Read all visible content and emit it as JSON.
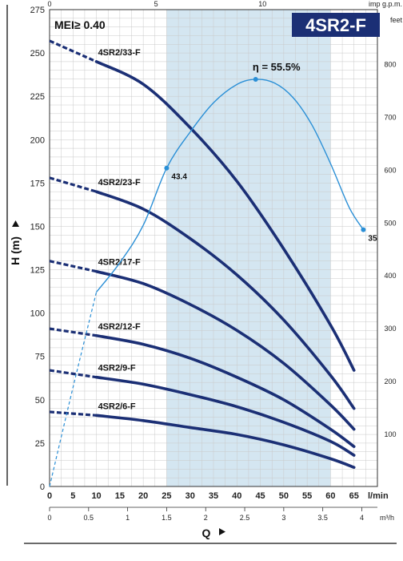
{
  "chart_data": {
    "type": "line",
    "badge": "4SR2-F",
    "mei_label": "MEI≥ 0.40",
    "ylabel": "H (m)",
    "xlabel": "Q",
    "x_unit": "l/min",
    "x_unit_m3h": "m³/h",
    "top_unit": "imp g.p.m.",
    "right_unit": "feet",
    "x_range_lmin": [
      0,
      70
    ],
    "y_range_m": [
      0,
      275
    ],
    "x_ticks_lmin": [
      "0",
      "5",
      "10",
      "15",
      "20",
      "25",
      "30",
      "35",
      "40",
      "45",
      "50",
      "55",
      "60",
      "65"
    ],
    "x_ticks_m3h": [
      "0",
      "0.5",
      "1",
      "1.5",
      "2",
      "2.5",
      "3",
      "3.5",
      "4"
    ],
    "top_ticks": [
      "0",
      "5",
      "10"
    ],
    "y_ticks": [
      "0",
      "25",
      "50",
      "75",
      "100",
      "125",
      "150",
      "175",
      "200",
      "225",
      "250",
      "275"
    ],
    "right_ticks": [
      "100",
      "200",
      "300",
      "400",
      "500",
      "600",
      "700",
      "800"
    ],
    "recommended_range_lmin": [
      25,
      60
    ],
    "series": [
      {
        "name": "4SR2/33-F",
        "dashed_x": [
          0,
          10
        ],
        "dashed_y": [
          257,
          245
        ],
        "x": [
          10,
          20,
          30,
          40,
          50,
          60,
          65
        ],
        "y": [
          245,
          232,
          207,
          176,
          137,
          93,
          67
        ]
      },
      {
        "name": "4SR2/23-F",
        "dashed_x": [
          0,
          10
        ],
        "dashed_y": [
          178,
          170
        ],
        "x": [
          10,
          20,
          30,
          40,
          50,
          60,
          65
        ],
        "y": [
          170,
          160,
          143,
          122,
          96,
          64,
          45
        ]
      },
      {
        "name": "4SR2/17-F",
        "dashed_x": [
          0,
          10
        ],
        "dashed_y": [
          130,
          124
        ],
        "x": [
          10,
          20,
          30,
          40,
          50,
          60,
          65
        ],
        "y": [
          124,
          117,
          105,
          90,
          71,
          47,
          33
        ]
      },
      {
        "name": "4SR2/12-F",
        "dashed_x": [
          0,
          10
        ],
        "dashed_y": [
          91,
          87
        ],
        "x": [
          10,
          20,
          30,
          40,
          50,
          60,
          65
        ],
        "y": [
          87,
          82,
          74,
          63,
          50,
          33,
          23
        ]
      },
      {
        "name": "4SR2/9-F",
        "dashed_x": [
          0,
          10
        ],
        "dashed_y": [
          67,
          63
        ],
        "x": [
          10,
          20,
          30,
          40,
          50,
          60,
          65
        ],
        "y": [
          63,
          59,
          53,
          46,
          37,
          26,
          18
        ]
      },
      {
        "name": "4SR2/6-F",
        "dashed_x": [
          0,
          10
        ],
        "dashed_y": [
          43,
          41
        ],
        "x": [
          10,
          20,
          30,
          40,
          50,
          60,
          65
        ],
        "y": [
          41,
          38,
          34,
          30,
          24,
          16,
          11
        ]
      }
    ],
    "efficiency": {
      "label": "η = 55.5%",
      "dashed_x": [
        0,
        5,
        10
      ],
      "dashed_y": [
        0,
        13.5,
        26.5
      ],
      "x": [
        10,
        15,
        20,
        25,
        30,
        35,
        40,
        44,
        48,
        52,
        56,
        60,
        64,
        67
      ],
      "y": [
        26.5,
        30.5,
        35.6,
        43.4,
        48.3,
        52.3,
        54.8,
        55.5,
        55.0,
        53.0,
        49.3,
        44.0,
        38.0,
        35
      ],
      "ylim_pct": [
        0,
        65
      ],
      "markers": [
        {
          "x": 25,
          "y": 43.4,
          "label": "43.4"
        },
        {
          "x": 44,
          "y": 55.5,
          "label": ""
        },
        {
          "x": 67,
          "y": 35,
          "label": "35"
        }
      ]
    }
  }
}
